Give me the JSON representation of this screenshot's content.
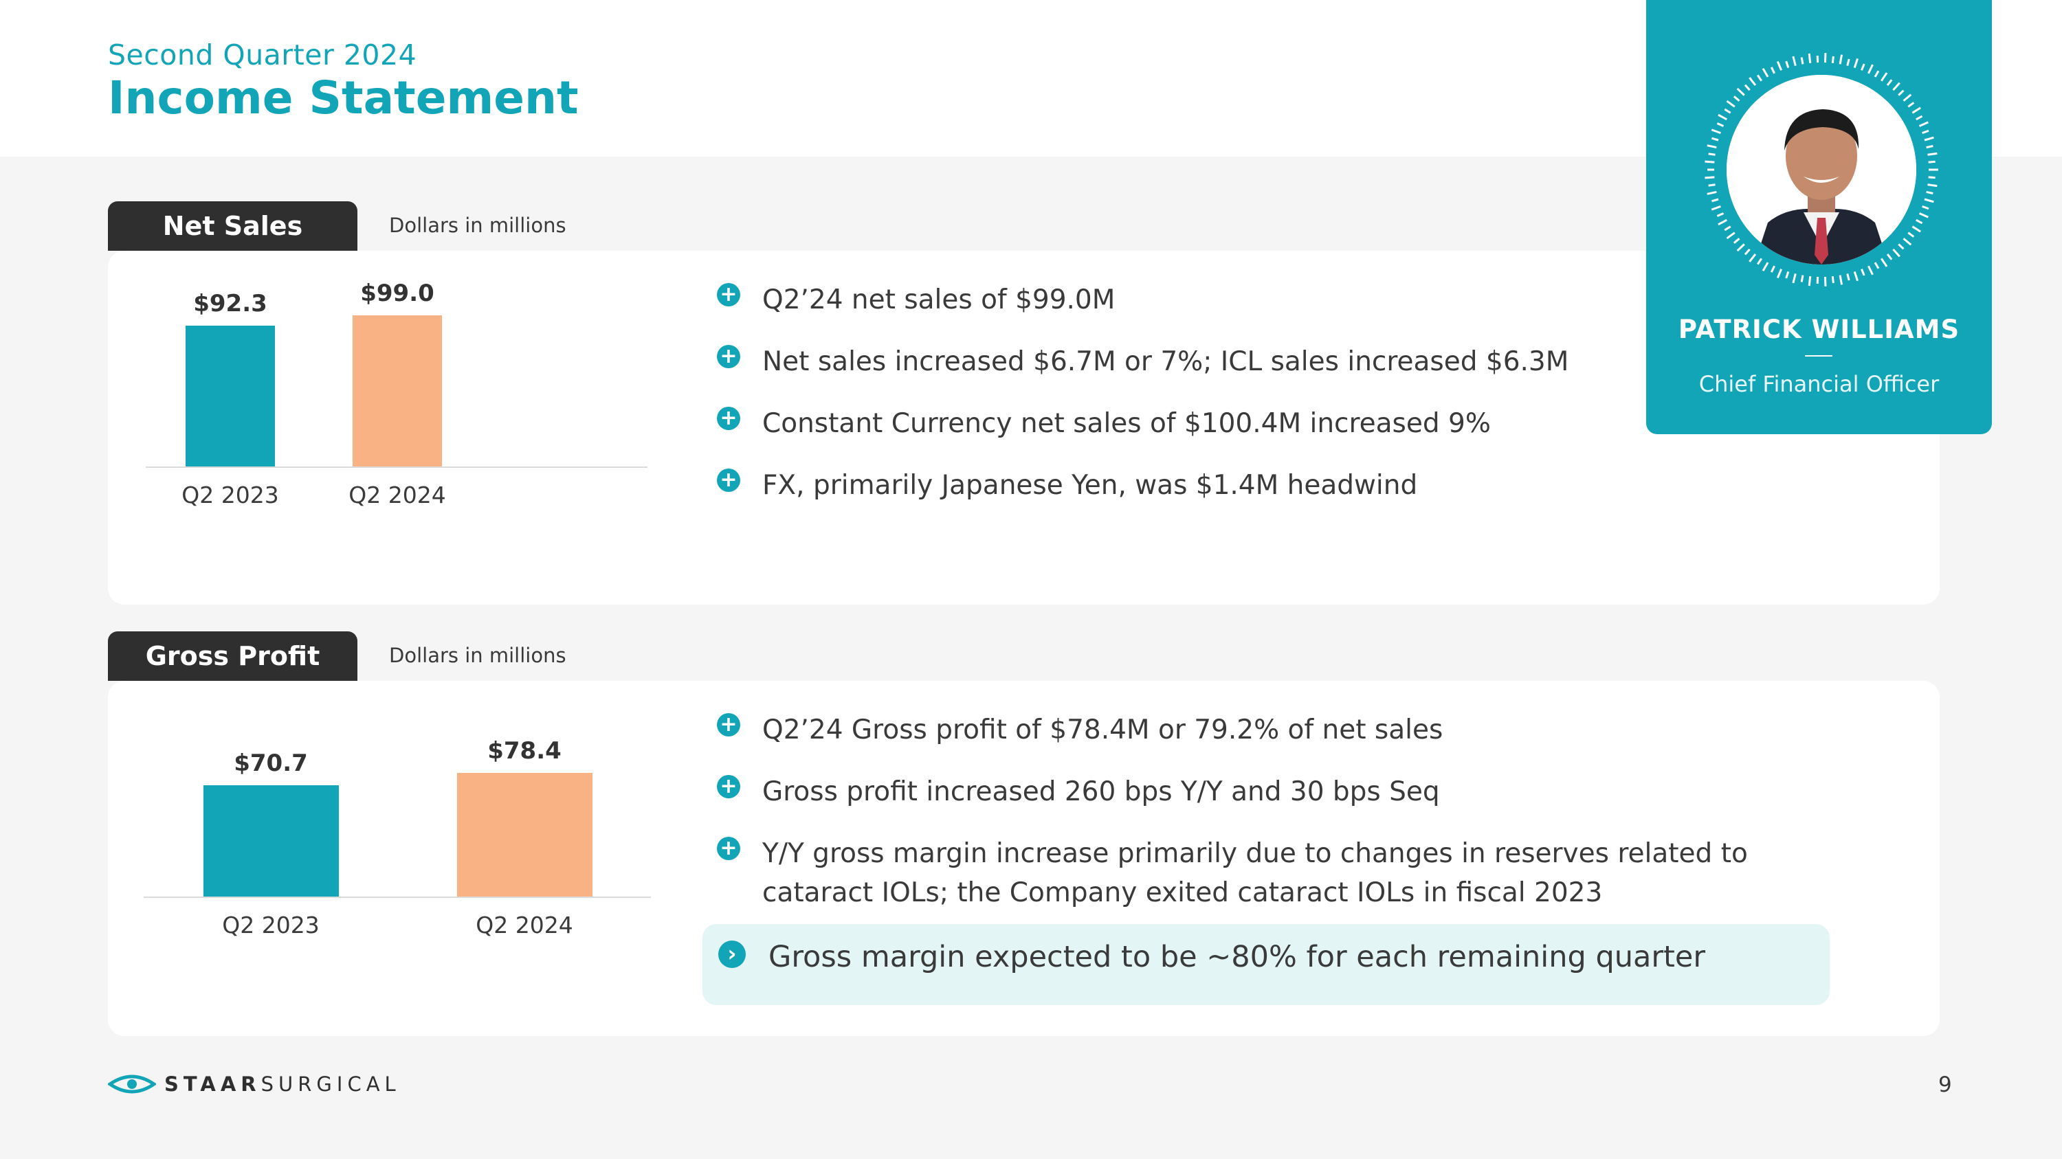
{
  "header": {
    "subtitle": "Second Quarter 2024",
    "title": "Income Statement"
  },
  "net_sales": {
    "tab_label": "Net Sales",
    "unit_note": "Dollars in millions",
    "bullets": [
      "Q2’24 net sales of $99.0M",
      "Net sales increased $6.7M or 7%; ICL sales increased $6.3M",
      "Constant Currency net sales of $100.4M increased 9%",
      "FX, primarily Japanese Yen, was $1.4M headwind"
    ]
  },
  "gross_profit": {
    "tab_label": "Gross Profit",
    "unit_note": "Dollars in millions",
    "bullets": [
      "Q2’24 Gross profit of $78.4M or 79.2% of net sales",
      "Gross profit increased 260 bps Y/Y and 30 bps Seq",
      "Y/Y gross margin increase primarily due to changes in reserves related to cataract IOLs; the Company exited cataract IOLs in fiscal 2023"
    ],
    "callout": "Gross margin expected to be ~80% for each remaining quarter"
  },
  "chart_data": [
    {
      "type": "bar",
      "title": "Net Sales",
      "categories": [
        "Q2 2023",
        "Q2 2024"
      ],
      "values": [
        92.3,
        99.0
      ],
      "data_labels": [
        "$92.3",
        "$99.0"
      ],
      "ylim": [
        0,
        100
      ],
      "colors": [
        "#12a4b7",
        "#f9b284"
      ],
      "grid": false
    },
    {
      "type": "bar",
      "title": "Gross Profit",
      "categories": [
        "Q2 2023",
        "Q2 2024"
      ],
      "values": [
        70.7,
        78.4
      ],
      "data_labels": [
        "$70.7",
        "$78.4"
      ],
      "ylim": [
        0,
        80
      ],
      "colors": [
        "#12a4b7",
        "#f9b284"
      ],
      "grid": false
    }
  ],
  "profile": {
    "name": "PATRICK WILLIAMS",
    "role": "Chief Financial Officer"
  },
  "footer": {
    "logo_bold": "STAAR",
    "logo_light": "SURGICAL",
    "page_number": "9"
  },
  "icons": {
    "bullet": "plus-circle-icon",
    "callout": "chevron-right-circle-icon",
    "logo": "eye-logo-icon"
  },
  "colors": {
    "accent": "#12a4b7",
    "bar_2023": "#12a4b7",
    "bar_2024": "#f9b284",
    "tab_bg": "#2f2f2f",
    "callout_bg": "#e3f5f5"
  }
}
